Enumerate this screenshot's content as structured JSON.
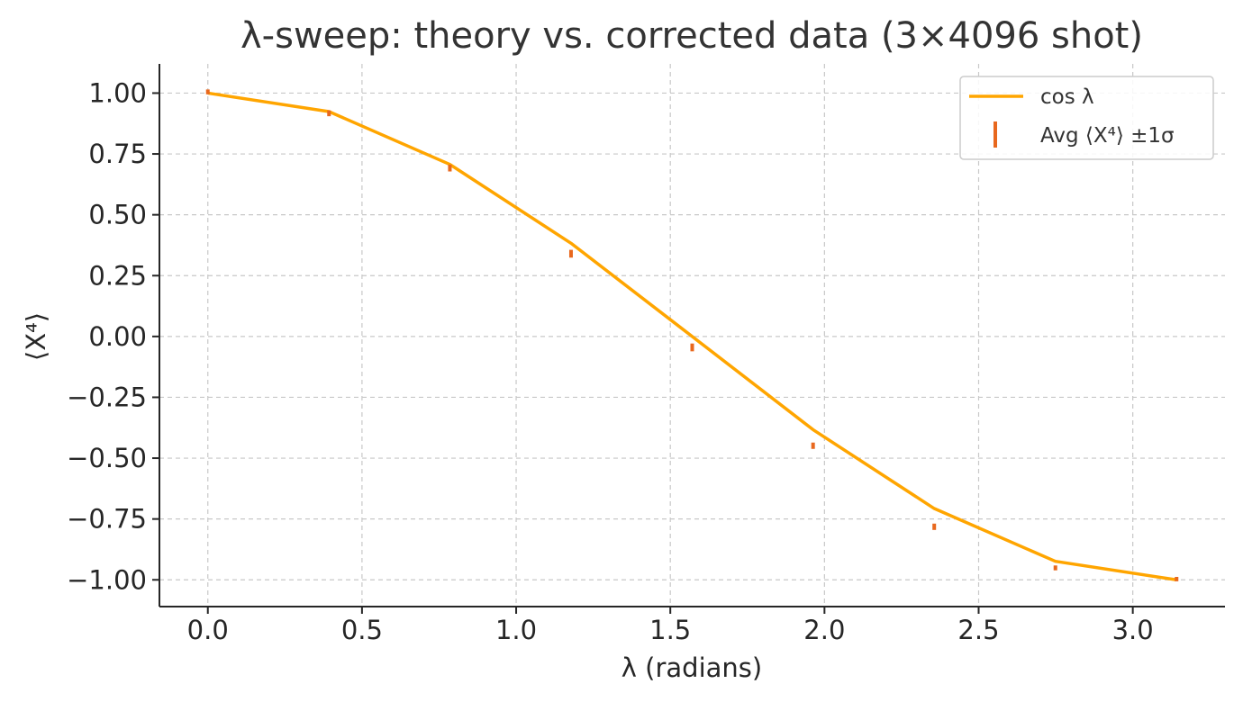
{
  "chart_data": {
    "type": "line",
    "title": "λ-sweep: theory vs. corrected data (3×4096 shot)",
    "xlabel": "λ (radians)",
    "ylabel": "⟨X⁴⟩",
    "xlim": [
      -0.157,
      3.299
    ],
    "ylim": [
      -1.11,
      1.12
    ],
    "xticks": [
      0.0,
      0.5,
      1.0,
      1.5,
      2.0,
      2.5,
      3.0
    ],
    "xtick_labels": [
      "0.0",
      "0.5",
      "1.0",
      "1.5",
      "2.0",
      "2.5",
      "3.0"
    ],
    "yticks": [
      1.0,
      0.75,
      0.5,
      0.25,
      0.0,
      -0.25,
      -0.5,
      -0.75,
      -1.0
    ],
    "ytick_labels": [
      "1.00",
      "0.75",
      "0.50",
      "0.25",
      "0.00",
      "−0.25",
      "−0.50",
      "−0.75",
      "−1.00"
    ],
    "grid": true,
    "legend_position": "top-right",
    "series": [
      {
        "name": "cos λ",
        "kind": "line",
        "color": "#FFA500",
        "x": [
          0.0,
          0.393,
          0.785,
          1.178,
          1.571,
          1.963,
          2.356,
          2.749,
          3.142
        ],
        "y": [
          1.0,
          0.924,
          0.707,
          0.383,
          0.0,
          -0.383,
          -0.707,
          -0.924,
          -1.0
        ]
      },
      {
        "name": "Avg ⟨X⁴⟩ ±1σ",
        "kind": "errorbar",
        "color": "#E8681E",
        "x": [
          0.0,
          0.393,
          0.785,
          1.178,
          1.571,
          1.963,
          2.356,
          2.749,
          3.142
        ],
        "y": [
          1.005,
          0.917,
          0.692,
          0.34,
          -0.045,
          -0.449,
          -0.782,
          -0.951,
          -0.997
        ],
        "err": [
          0.01,
          0.012,
          0.014,
          0.016,
          0.016,
          0.013,
          0.013,
          0.01,
          0.009
        ]
      }
    ]
  }
}
